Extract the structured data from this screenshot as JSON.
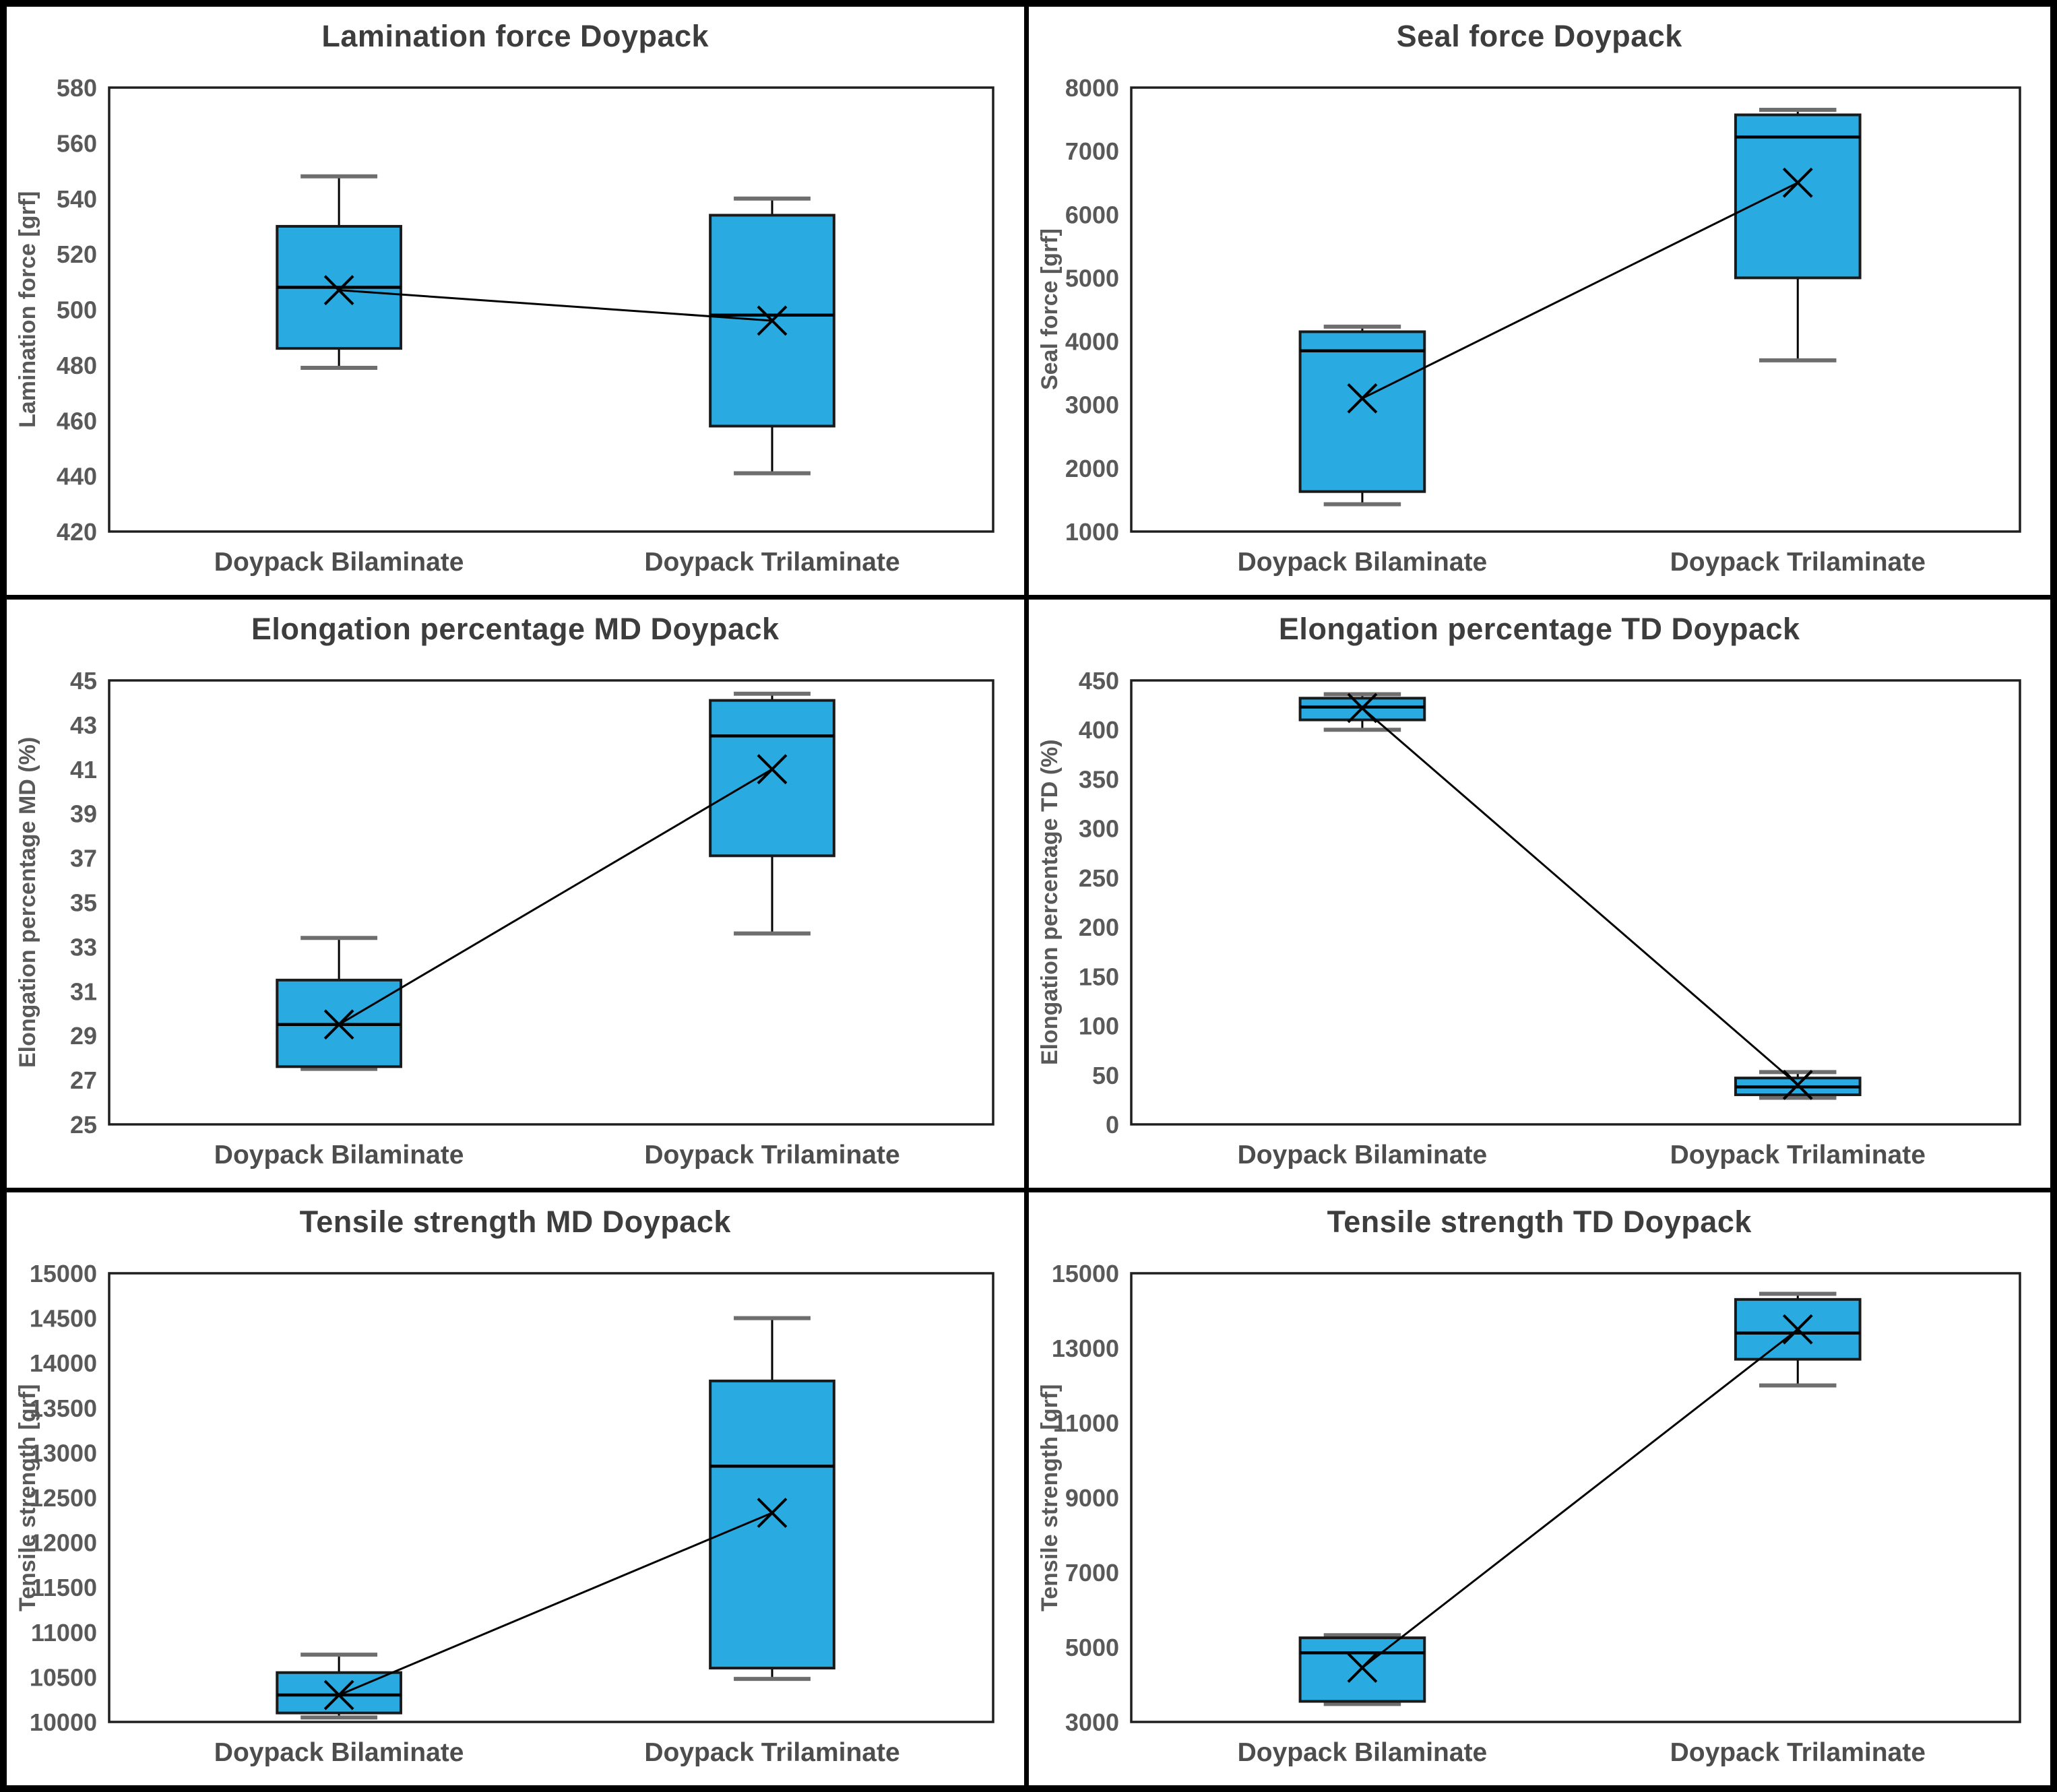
{
  "figure": {
    "background": "#ffffff",
    "frame_color": "#000000",
    "plot_border_color": "#1f1f1f",
    "box_fill": "#29ABE2",
    "box_stroke": "#1a1a1a",
    "whisker_color": "#000000",
    "cap_color": "#6e6e6e",
    "mean_marker_color": "#000000",
    "title_color": "#3d3d3d",
    "label_color": "#595959",
    "category_color": "#4d4d4d"
  },
  "categories": [
    "Doypack Bilaminate",
    "Doypack Trilaminate"
  ],
  "chart_data": [
    {
      "type": "box",
      "title": "Lamination force Doypack",
      "ylabel": "Lamination force [grf]",
      "ylim": [
        420,
        580
      ],
      "yticks": [
        420,
        440,
        460,
        480,
        500,
        520,
        540,
        560,
        580
      ],
      "grid": false,
      "legend": false,
      "categories": [
        "Doypack Bilaminate",
        "Doypack Trilaminate"
      ],
      "series": [
        {
          "name": "Doypack Bilaminate",
          "whisker_low": 479,
          "q1": 486,
          "median": 508,
          "q3": 530,
          "whisker_high": 548,
          "mean": 507
        },
        {
          "name": "Doypack Trilaminate",
          "whisker_low": 441,
          "q1": 458,
          "median": 498,
          "q3": 534,
          "whisker_high": 540,
          "mean": 496
        }
      ]
    },
    {
      "type": "box",
      "title": "Seal force Doypack",
      "ylabel": "Seal force [grf]",
      "ylim": [
        1000,
        8000
      ],
      "yticks": [
        1000,
        2000,
        3000,
        4000,
        5000,
        6000,
        7000,
        8000
      ],
      "grid": false,
      "legend": false,
      "categories": [
        "Doypack Bilaminate",
        "Doypack Trilaminate"
      ],
      "series": [
        {
          "name": "Doypack Bilaminate",
          "whisker_low": 1430,
          "q1": 1630,
          "median": 3850,
          "q3": 4150,
          "whisker_high": 4230,
          "mean": 3100
        },
        {
          "name": "Doypack Trilaminate",
          "whisker_low": 3700,
          "q1": 5000,
          "median": 7220,
          "q3": 7570,
          "whisker_high": 7650,
          "mean": 6500
        }
      ]
    },
    {
      "type": "box",
      "title": "Elongation percentage MD Doypack",
      "ylabel": "Elongation percentage MD (%)",
      "ylim": [
        25,
        45
      ],
      "yticks": [
        25,
        27,
        29,
        31,
        33,
        35,
        37,
        39,
        41,
        43,
        45
      ],
      "grid": false,
      "legend": false,
      "categories": [
        "Doypack Bilaminate",
        "Doypack Trilaminate"
      ],
      "series": [
        {
          "name": "Doypack Bilaminate",
          "whisker_low": 27.5,
          "q1": 27.6,
          "median": 29.5,
          "q3": 31.5,
          "whisker_high": 33.4,
          "mean": 29.5
        },
        {
          "name": "Doypack Trilaminate",
          "whisker_low": 33.6,
          "q1": 37.1,
          "median": 42.5,
          "q3": 44.1,
          "whisker_high": 44.4,
          "mean": 41.0
        }
      ]
    },
    {
      "type": "box",
      "title": "Elongation percentage TD Doypack",
      "ylabel": "Elongation percentage TD (%)",
      "ylim": [
        0,
        450
      ],
      "yticks": [
        0,
        50,
        100,
        150,
        200,
        250,
        300,
        350,
        400,
        450
      ],
      "grid": false,
      "legend": false,
      "categories": [
        "Doypack Bilaminate",
        "Doypack Trilaminate"
      ],
      "series": [
        {
          "name": "Doypack Bilaminate",
          "whisker_low": 400,
          "q1": 410,
          "median": 423,
          "q3": 432,
          "whisker_high": 436,
          "mean": 422
        },
        {
          "name": "Doypack Trilaminate",
          "whisker_low": 27,
          "q1": 30,
          "median": 38,
          "q3": 47,
          "whisker_high": 53,
          "mean": 40
        }
      ]
    },
    {
      "type": "box",
      "title": "Tensile strength MD Doypack",
      "ylabel": "Tensile strength [grf]",
      "ylim": [
        10000,
        15000
      ],
      "yticks": [
        10000,
        10500,
        11000,
        11500,
        12000,
        12500,
        13000,
        13500,
        14000,
        14500,
        15000
      ],
      "grid": false,
      "legend": false,
      "categories": [
        "Doypack Bilaminate",
        "Doypack Trilaminate"
      ],
      "series": [
        {
          "name": "Doypack Bilaminate",
          "whisker_low": 10050,
          "q1": 10100,
          "median": 10300,
          "q3": 10550,
          "whisker_high": 10750,
          "mean": 10300
        },
        {
          "name": "Doypack Trilaminate",
          "whisker_low": 10480,
          "q1": 10600,
          "median": 12850,
          "q3": 13800,
          "whisker_high": 14500,
          "mean": 12330
        }
      ]
    },
    {
      "type": "box",
      "title": "Tensile strength TD Doypack",
      "ylabel": "Tensile strength [grf]",
      "ylim": [
        3000,
        15000
      ],
      "yticks": [
        3000,
        5000,
        7000,
        9000,
        11000,
        13000,
        15000
      ],
      "grid": false,
      "legend": false,
      "categories": [
        "Doypack Bilaminate",
        "Doypack Trilaminate"
      ],
      "series": [
        {
          "name": "Doypack Bilaminate",
          "whisker_low": 3480,
          "q1": 3550,
          "median": 4850,
          "q3": 5250,
          "whisker_high": 5320,
          "mean": 4450
        },
        {
          "name": "Doypack Trilaminate",
          "whisker_low": 12000,
          "q1": 12700,
          "median": 13400,
          "q3": 14300,
          "whisker_high": 14450,
          "mean": 13500
        }
      ]
    }
  ]
}
